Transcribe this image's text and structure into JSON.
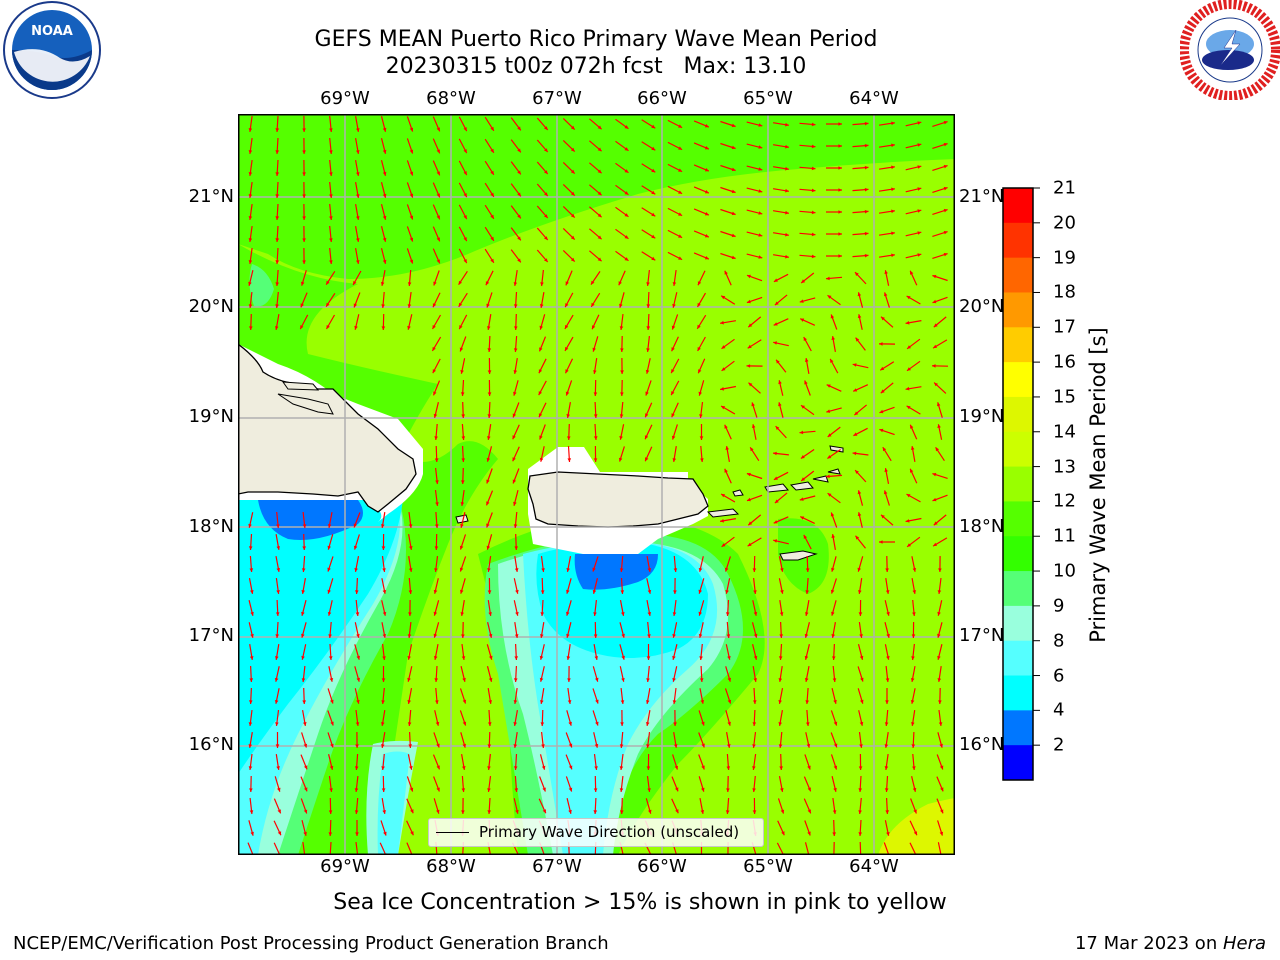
{
  "title_line1": "GEFS MEAN Puerto Rico Primary Wave Mean Period",
  "title_line2": "20230315 t00z 072h fcst   Max: 13.10",
  "lon_labels": [
    "69°W",
    "68°W",
    "67°W",
    "66°W",
    "65°W",
    "64°W"
  ],
  "lat_labels": [
    "21°N",
    "20°N",
    "19°N",
    "18°N",
    "17°N",
    "16°N"
  ],
  "colorbar": {
    "label": "Primary Wave Mean Period [s]",
    "ticks": [
      "21",
      "20",
      "19",
      "18",
      "17",
      "16",
      "15",
      "14",
      "13",
      "12",
      "11",
      "10",
      "9",
      "8",
      "6",
      "4",
      "2"
    ],
    "colors": [
      "#ff0000",
      "#ff3300",
      "#ff6600",
      "#ff9900",
      "#ffcc00",
      "#ffff00",
      "#ddf700",
      "#ccff00",
      "#99ff00",
      "#55ff00",
      "#33ff00",
      "#55ff77",
      "#99ffdd",
      "#55ffff",
      "#00ffff",
      "#0077ff",
      "#0000ff"
    ]
  },
  "legend": {
    "label": "Primary Wave Direction (unscaled)"
  },
  "sea_ice_note": "Sea Ice Concentration > 15% is shown in pink to yellow",
  "footer_left": "NCEP/EMC/Verification Post Processing Product Generation Branch",
  "footer_right_date": "17 Mar 2023 on ",
  "footer_right_host": "Hera",
  "logos": {
    "noaa": {
      "text": "NOAA",
      "ring_text": "NATIONAL OCEANIC AND ATMOSPHERIC ADMINISTRATION · U.S. DEPARTMENT OF COMMERCE"
    },
    "nws": {
      "ring_text": "NATIONAL WEATHER SERVICE"
    }
  },
  "map_colors": {
    "land": "#efedde",
    "arrow": "#ff0000",
    "grid": "#b0b0b0",
    "green_12": "#55ff00",
    "green_11": "#33ff00",
    "period_10": "#55ff77",
    "cyan": "#00ffff",
    "lightcyan": "#99ffdd",
    "blue": "#0077ff",
    "lime_13": "#99ff00",
    "yellow_14": "#ddf700"
  }
}
